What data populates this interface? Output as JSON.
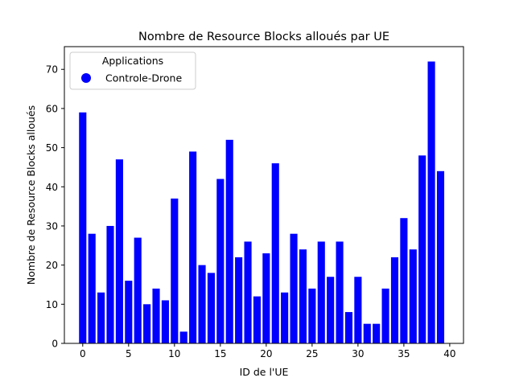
{
  "chart_data": {
    "type": "bar",
    "title": "Nombre de Resource Blocks alloués par UE",
    "xlabel": "ID de l'UE",
    "ylabel": "Nombre de Resource Blocks alloués",
    "xlim": [
      -2.0,
      41.5
    ],
    "ylim": [
      0,
      75.8
    ],
    "xticks": [
      0,
      5,
      10,
      15,
      20,
      25,
      30,
      35,
      40
    ],
    "yticks": [
      0,
      10,
      20,
      30,
      40,
      50,
      60,
      70
    ],
    "grid": false,
    "legend": {
      "title": "Applications",
      "placement": "top-left",
      "entries": [
        {
          "label": "Controle-Drone",
          "color": "#0000ff"
        }
      ]
    },
    "series": [
      {
        "name": "Controle-Drone",
        "color": "#0000ff",
        "x": [
          0,
          1,
          2,
          3,
          4,
          5,
          6,
          7,
          8,
          9,
          10,
          11,
          12,
          13,
          14,
          15,
          16,
          17,
          18,
          19,
          20,
          21,
          22,
          23,
          24,
          25,
          26,
          27,
          28,
          29,
          30,
          31,
          32,
          33,
          34,
          35,
          36,
          37,
          38,
          39
        ],
        "values": [
          59,
          28,
          13,
          30,
          47,
          16,
          27,
          10,
          14,
          11,
          37,
          3,
          49,
          20,
          18,
          42,
          52,
          22,
          26,
          12,
          23,
          46,
          13,
          28,
          24,
          14,
          26,
          17,
          26,
          8,
          17,
          5,
          5,
          14,
          22,
          32,
          24,
          48,
          72,
          44
        ]
      }
    ]
  }
}
